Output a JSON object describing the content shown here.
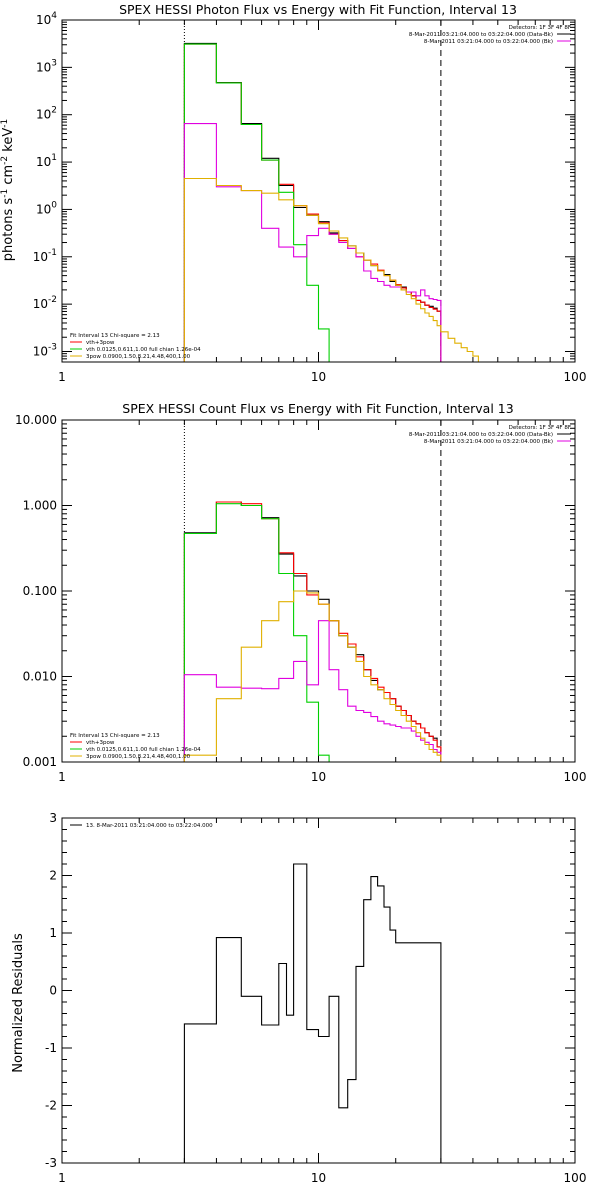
{
  "chart_data": [
    {
      "type": "line",
      "title": "SPEX HESSI Photon Flux vs Energy with Fit Function, Interval 13",
      "xlabel": "",
      "ylabel": "photons s^-1 cm^-2 keV^-1",
      "xscale": "log",
      "yscale": "log",
      "xlim": [
        1,
        100
      ],
      "ylim": [
        0.0006,
        10000
      ],
      "xticks": [
        {
          "v": 1,
          "label": "1"
        },
        {
          "v": 10,
          "label": "10"
        },
        {
          "v": 100,
          "label": "100"
        }
      ],
      "yticks": [
        {
          "v": 0.001,
          "b": "10",
          "e": "-3"
        },
        {
          "v": 0.01,
          "b": "10",
          "e": "-2"
        },
        {
          "v": 0.1,
          "b": "10",
          "e": "-1"
        },
        {
          "v": 1,
          "b": "10",
          "e": "0"
        },
        {
          "v": 10,
          "b": "10",
          "e": "1"
        },
        {
          "v": 100,
          "b": "10",
          "e": "2"
        },
        {
          "v": 1000,
          "b": "10",
          "e": "3"
        },
        {
          "v": 10000,
          "b": "10",
          "e": "4"
        }
      ],
      "vlines": [
        {
          "x": 3,
          "style": "dotted"
        },
        {
          "x": 30,
          "style": "dashed"
        }
      ],
      "legend_right": {
        "placement": "top-right",
        "lines": [
          {
            "text": "Detectors: 1F 3F 4F 8F",
            "color": ""
          },
          {
            "text": "8-Mar-2011 03:21:04.000 to 03:22:04.000 (Data-Bk)",
            "color": "#000000"
          },
          {
            "text": "8-Mar-2011 03:21:04.000 to 03:22:04.000 (Bk)",
            "color": "#e000e0"
          }
        ]
      },
      "legend_left": {
        "placement": "bottom-left",
        "lines": [
          {
            "text": "Fit Interval 13   Chi-square = 2.13",
            "color": ""
          },
          {
            "text": "vth+3pow",
            "color": "#ff0000"
          },
          {
            "text": "vth 0.0125,0.611,1.00  full chian 1.26e-04",
            "color": "#00d000"
          },
          {
            "text": "3pow 0.0900,1.50,8.21,4.48,400,1.00",
            "color": "#e0b000"
          }
        ]
      },
      "series": [
        {
          "color": "#000000",
          "edges": [
            3,
            4,
            5,
            6,
            7,
            8,
            9,
            10,
            11,
            12,
            13,
            14,
            15,
            16,
            17,
            18,
            19,
            20,
            21,
            22,
            23,
            24,
            25,
            26,
            27,
            28,
            29,
            30
          ],
          "values": [
            3200,
            480,
            65,
            12,
            3.2,
            1.1,
            0.75,
            0.55,
            0.32,
            0.22,
            0.17,
            0.12,
            0.085,
            0.065,
            0.05,
            0.042,
            0.03,
            0.025,
            0.023,
            0.018,
            0.015,
            0.012,
            0.011,
            0.0095,
            0.009,
            0.0082,
            0.0071
          ]
        },
        {
          "color": "#ff0000",
          "edges": [
            3,
            4,
            5,
            6,
            7,
            8,
            9,
            10,
            11,
            12,
            13,
            14,
            15,
            16,
            17,
            18,
            19,
            20,
            21,
            22,
            23,
            24,
            25,
            26,
            27,
            28,
            29,
            30
          ],
          "values": [
            3100,
            470,
            62,
            11,
            3.4,
            1.2,
            0.8,
            0.52,
            0.3,
            0.22,
            0.15,
            0.1,
            0.085,
            0.07,
            0.052,
            0.04,
            0.032,
            0.026,
            0.022,
            0.018,
            0.015,
            0.012,
            0.011,
            0.0095,
            0.0085,
            0.0078,
            0.0071
          ]
        },
        {
          "color": "#00d000",
          "edges": [
            3,
            4,
            5,
            6,
            7,
            8,
            9,
            10,
            11,
            12
          ],
          "values": [
            3100,
            470,
            62,
            11,
            2.3,
            0.18,
            0.025,
            0.003,
            0.0006
          ]
        },
        {
          "color": "#e000e0",
          "edges": [
            3,
            4,
            5,
            6,
            7,
            8,
            9,
            10,
            11,
            12,
            13,
            14,
            15,
            16,
            17,
            18,
            19,
            20,
            21,
            22,
            23,
            24,
            25,
            26,
            27,
            28,
            29,
            30
          ],
          "values": [
            65,
            3,
            2.5,
            0.4,
            0.16,
            0.1,
            0.28,
            0.4,
            0.3,
            0.2,
            0.15,
            0.1,
            0.05,
            0.035,
            0.03,
            0.025,
            0.023,
            0.023,
            0.02,
            0.018,
            0.018,
            0.015,
            0.02,
            0.015,
            0.013,
            0.0125,
            0.012
          ]
        },
        {
          "color": "#e0b000",
          "edges": [
            3,
            4,
            5,
            6,
            7,
            8,
            9,
            10,
            11,
            12,
            13,
            14,
            15,
            16,
            17,
            18,
            19,
            20,
            21,
            22,
            23,
            24,
            25,
            26,
            27,
            28,
            29,
            30,
            32,
            34,
            36,
            38,
            40,
            42
          ],
          "values": [
            4.5,
            3.2,
            2.5,
            2.2,
            1.6,
            1.2,
            0.75,
            0.5,
            0.35,
            0.25,
            0.17,
            0.12,
            0.085,
            0.065,
            0.05,
            0.04,
            0.032,
            0.025,
            0.02,
            0.016,
            0.013,
            0.01,
            0.008,
            0.0065,
            0.0055,
            0.0045,
            0.0035,
            0.0026,
            0.0019,
            0.0015,
            0.0012,
            0.001,
            0.0008
          ]
        }
      ]
    },
    {
      "type": "line",
      "title": "SPEX HESSI Count Flux vs Energy with Fit Function, Interval 13",
      "xlabel": "",
      "ylabel": "",
      "xscale": "log",
      "yscale": "log",
      "xlim": [
        1,
        100
      ],
      "ylim": [
        0.001,
        10
      ],
      "xticks": [
        {
          "v": 1,
          "label": "1"
        },
        {
          "v": 10,
          "label": "10"
        },
        {
          "v": 100,
          "label": "100"
        }
      ],
      "yticks": [
        {
          "v": 0.001,
          "label": "0.001"
        },
        {
          "v": 0.01,
          "label": "0.010"
        },
        {
          "v": 0.1,
          "label": "0.100"
        },
        {
          "v": 1,
          "label": "1.000"
        },
        {
          "v": 10,
          "label": "10.000"
        }
      ],
      "vlines": [
        {
          "x": 3,
          "style": "dotted"
        },
        {
          "x": 30,
          "style": "dashed"
        }
      ],
      "legend_right": {
        "placement": "top-right",
        "lines": [
          {
            "text": "Detectors: 1F 3F 4F 8F",
            "color": ""
          },
          {
            "text": "8-Mar-2011 03:21:04.000 to 03:22:04.000 (Data-Bk)",
            "color": "#000000"
          },
          {
            "text": "8-Mar-2011 03:21:04.000 to 03:22:04.000 (Bk)",
            "color": "#e000e0"
          }
        ]
      },
      "legend_left": {
        "placement": "bottom-left",
        "lines": [
          {
            "text": "Fit Interval 13   Chi-square = 2.13",
            "color": ""
          },
          {
            "text": "vth+3pow",
            "color": "#ff0000"
          },
          {
            "text": "vth 0.0125,0.611,1.00  full chian 1.26e-04",
            "color": "#00d000"
          },
          {
            "text": "3pow 0.0900,1.50,8.21,4.48,400,1.00",
            "color": "#e0b000"
          }
        ]
      },
      "series": [
        {
          "color": "#000000",
          "edges": [
            3,
            4,
            5,
            6,
            7,
            8,
            9,
            10,
            11,
            12,
            13,
            14,
            15,
            16,
            17,
            18,
            19,
            20,
            21,
            22,
            23,
            24,
            25,
            26,
            27,
            28,
            29,
            30
          ],
          "values": [
            0.48,
            1.1,
            1.0,
            0.72,
            0.27,
            0.15,
            0.1,
            0.08,
            0.045,
            0.03,
            0.022,
            0.018,
            0.012,
            0.009,
            0.007,
            0.0065,
            0.0055,
            0.0045,
            0.004,
            0.0035,
            0.003,
            0.0028,
            0.0025,
            0.0022,
            0.002,
            0.0019,
            0.0015
          ]
        },
        {
          "color": "#ff0000",
          "edges": [
            3,
            4,
            5,
            6,
            7,
            8,
            9,
            10,
            11,
            12,
            13,
            14,
            15,
            16,
            17,
            18,
            19,
            20,
            21,
            22,
            23,
            24,
            25,
            26,
            27,
            28,
            29,
            30
          ],
          "values": [
            0.47,
            1.1,
            1.05,
            0.7,
            0.28,
            0.16,
            0.09,
            0.07,
            0.045,
            0.032,
            0.024,
            0.017,
            0.012,
            0.0095,
            0.0075,
            0.0065,
            0.0055,
            0.0045,
            0.004,
            0.0035,
            0.003,
            0.0028,
            0.0025,
            0.0022,
            0.002,
            0.0018,
            0.0015
          ]
        },
        {
          "color": "#00d000",
          "edges": [
            3,
            4,
            5,
            6,
            7,
            8,
            9,
            10,
            11
          ],
          "values": [
            0.47,
            1.05,
            1.0,
            0.7,
            0.16,
            0.03,
            0.005,
            0.0012
          ]
        },
        {
          "color": "#e000e0",
          "edges": [
            3,
            4,
            5,
            6,
            7,
            8,
            9,
            10,
            11,
            12,
            13,
            14,
            15,
            16,
            17,
            18,
            19,
            20,
            21,
            22,
            23,
            24,
            25,
            26,
            27,
            28,
            29,
            30
          ],
          "values": [
            0.0105,
            0.0075,
            0.0073,
            0.0072,
            0.0095,
            0.015,
            0.008,
            0.045,
            0.012,
            0.007,
            0.0045,
            0.004,
            0.0038,
            0.0034,
            0.003,
            0.0028,
            0.0027,
            0.0026,
            0.0025,
            0.0025,
            0.0023,
            0.002,
            0.0018,
            0.0017,
            0.0016,
            0.0014,
            0.0013
          ]
        },
        {
          "color": "#e0b000",
          "edges": [
            3,
            4,
            5,
            6,
            7,
            8,
            9,
            10,
            11,
            12,
            13,
            14,
            15,
            16,
            17,
            18,
            19,
            20,
            21,
            22,
            23,
            24,
            25,
            26,
            27,
            28,
            29,
            30,
            32
          ],
          "values": [
            0.0012,
            0.0055,
            0.022,
            0.045,
            0.075,
            0.1,
            0.095,
            0.07,
            0.045,
            0.03,
            0.022,
            0.015,
            0.01,
            0.008,
            0.007,
            0.0055,
            0.0047,
            0.004,
            0.0035,
            0.003,
            0.0026,
            0.0022,
            0.0019,
            0.0016,
            0.0014,
            0.0013,
            0.0012,
            0.001
          ]
        }
      ]
    },
    {
      "type": "line",
      "title": "",
      "xlabel": "",
      "ylabel": "Normalized Residuals",
      "xscale": "log",
      "yscale": "linear",
      "xlim": [
        1,
        100
      ],
      "ylim": [
        -3,
        3
      ],
      "xticks": [
        {
          "v": 1,
          "label": "1"
        },
        {
          "v": 10,
          "label": "10"
        },
        {
          "v": 100,
          "label": "100"
        }
      ],
      "yticks": [
        {
          "v": -3,
          "label": "-3"
        },
        {
          "v": -2,
          "label": "-2"
        },
        {
          "v": -1,
          "label": "-1"
        },
        {
          "v": 0,
          "label": "0"
        },
        {
          "v": 1,
          "label": "1"
        },
        {
          "v": 2,
          "label": "2"
        },
        {
          "v": 3,
          "label": "3"
        }
      ],
      "vlines": [],
      "legend_left": {
        "placement": "top-left",
        "lines": [
          {
            "text": "13.  8-Mar-2011 03:21:04.000 to 03:22:04.000",
            "color": "#000000"
          }
        ]
      },
      "series": [
        {
          "color": "#000000",
          "edges": [
            3,
            4,
            5,
            6,
            7,
            7.5,
            8,
            9,
            10,
            11,
            12,
            13,
            14,
            15,
            16,
            17,
            18,
            19,
            20,
            21,
            22,
            23,
            24,
            25,
            26,
            27,
            28,
            29,
            30
          ],
          "values": [
            -0.58,
            0.92,
            -0.1,
            -0.6,
            0.47,
            -0.43,
            2.2,
            -0.68,
            -0.8,
            -0.1,
            -2.04,
            -1.55,
            0.42,
            1.58,
            1.98,
            1.82,
            1.45,
            1.05,
            0.83,
            0.83,
            0.83,
            0.83,
            0.83,
            0.83,
            0.83,
            0.83,
            0.83,
            0.83
          ]
        }
      ]
    }
  ]
}
